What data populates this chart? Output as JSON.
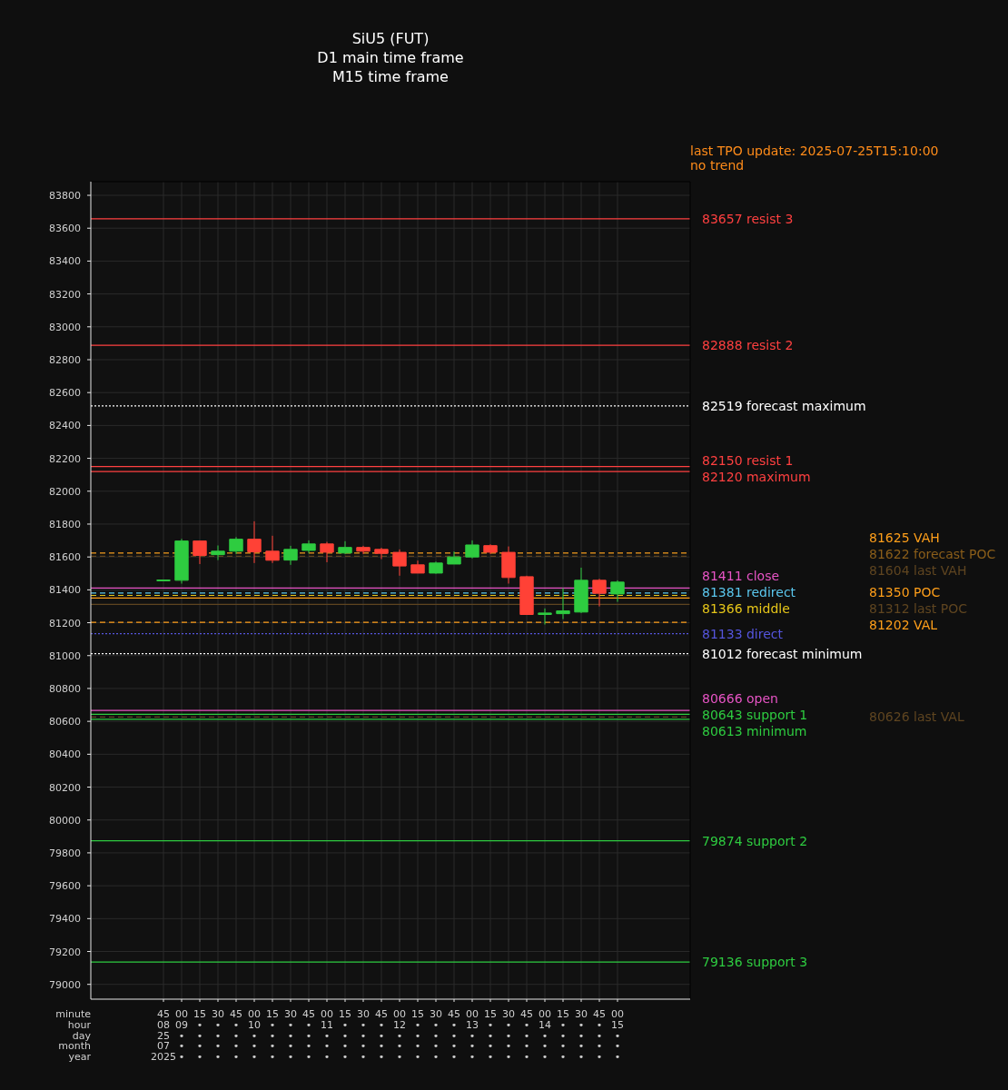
{
  "chart_data": {
    "type": "candlestick",
    "title": "SiU5 (FUT)",
    "subtitle": "D1 main time frame\nM15 time frame",
    "xlabel": "minute\nhour\nday\nmonth\nyear",
    "annotations": [
      "last TPO update: 2025-07-25T15:10:00",
      "no trend"
    ],
    "x": [
      "2025-07-25T08:45",
      "2025-07-25T09:00",
      "2025-07-25T09:15",
      "2025-07-25T09:30",
      "2025-07-25T09:45",
      "2025-07-25T10:00",
      "2025-07-25T10:15",
      "2025-07-25T10:30",
      "2025-07-25T10:45",
      "2025-07-25T11:00",
      "2025-07-25T11:15",
      "2025-07-25T11:30",
      "2025-07-25T11:45",
      "2025-07-25T12:00",
      "2025-07-25T12:15",
      "2025-07-25T12:30",
      "2025-07-25T12:45",
      "2025-07-25T13:00",
      "2025-07-25T13:15",
      "2025-07-25T13:30",
      "2025-07-25T13:45",
      "2025-07-25T14:00",
      "2025-07-25T14:15",
      "2025-07-25T14:30",
      "2025-07-25T14:45",
      "2025-07-25T15:00"
    ],
    "ohlc": [
      [
        81455,
        81460,
        81455,
        81460
      ],
      [
        81458,
        81710,
        81438,
        81697
      ],
      [
        81697,
        81700,
        81557,
        81609
      ],
      [
        81614,
        81670,
        81581,
        81635
      ],
      [
        81635,
        81721,
        81618,
        81708
      ],
      [
        81708,
        81817,
        81563,
        81631
      ],
      [
        81635,
        81729,
        81563,
        81580
      ],
      [
        81581,
        81668,
        81552,
        81646
      ],
      [
        81640,
        81701,
        81622,
        81679
      ],
      [
        81679,
        81692,
        81568,
        81629
      ],
      [
        81624,
        81696,
        81618,
        81658
      ],
      [
        81658,
        81668,
        81618,
        81635
      ],
      [
        81646,
        81656,
        81587,
        81622
      ],
      [
        81628,
        81646,
        81486,
        81545
      ],
      [
        81552,
        81578,
        81502,
        81502
      ],
      [
        81502,
        81572,
        81498,
        81563
      ],
      [
        81557,
        81633,
        81557,
        81600
      ],
      [
        81600,
        81701,
        81591,
        81673
      ],
      [
        81669,
        81677,
        81618,
        81629
      ],
      [
        81628,
        81664,
        81438,
        81475
      ],
      [
        81480,
        81486,
        81250,
        81250
      ],
      [
        81250,
        81287,
        81189,
        81259
      ],
      [
        81255,
        81412,
        81222,
        81272
      ],
      [
        81265,
        81535,
        81259,
        81458
      ],
      [
        81458,
        81467,
        81299,
        81379
      ],
      [
        81375,
        81458,
        81327,
        81447
      ]
    ],
    "colors": [
      "#2ecc40",
      "#2ecc40",
      "#ff4136",
      "#2ecc40",
      "#2ecc40",
      "#ff4136",
      "#ff4136",
      "#2ecc40",
      "#2ecc40",
      "#ff4136",
      "#2ecc40",
      "#ff4136",
      "#ff4136",
      "#ff4136",
      "#ff4136",
      "#2ecc40",
      "#2ecc40",
      "#2ecc40",
      "#ff4136",
      "#ff4136",
      "#ff4136",
      "#2ecc40",
      "#2ecc40",
      "#2ecc40",
      "#ff4136",
      "#2ecc40"
    ],
    "xlim": [
      "2025-07-25T07:45",
      "2025-07-25T16:00"
    ],
    "xticks": [
      {
        "value": "2025-07-25T08:45",
        "label": "45\n08\n25\n07\n2025"
      },
      {
        "value": "2025-07-25T09:00",
        "label": "00\n09\n•\n•\n•"
      },
      {
        "value": "2025-07-25T09:15",
        "label": "15\n•\n•\n•\n•"
      },
      {
        "value": "2025-07-25T09:30",
        "label": "30\n•\n•\n•\n•"
      },
      {
        "value": "2025-07-25T09:45",
        "label": "45\n•\n•\n•\n•"
      },
      {
        "value": "2025-07-25T10:00",
        "label": "00\n10\n•\n•\n•"
      },
      {
        "value": "2025-07-25T10:15",
        "label": "15\n•\n•\n•\n•"
      },
      {
        "value": "2025-07-25T10:30",
        "label": "30\n•\n•\n•\n•"
      },
      {
        "value": "2025-07-25T10:45",
        "label": "45\n•\n•\n•\n•"
      },
      {
        "value": "2025-07-25T11:00",
        "label": "00\n11\n•\n•\n•"
      },
      {
        "value": "2025-07-25T11:15",
        "label": "15\n•\n•\n•\n•"
      },
      {
        "value": "2025-07-25T11:30",
        "label": "30\n•\n•\n•\n•"
      },
      {
        "value": "2025-07-25T11:45",
        "label": "45\n•\n•\n•\n•"
      },
      {
        "value": "2025-07-25T12:00",
        "label": "00\n12\n•\n•\n•"
      },
      {
        "value": "2025-07-25T12:15",
        "label": "15\n•\n•\n•\n•"
      },
      {
        "value": "2025-07-25T12:30",
        "label": "30\n•\n•\n•\n•"
      },
      {
        "value": "2025-07-25T12:45",
        "label": "45\n•\n•\n•\n•"
      },
      {
        "value": "2025-07-25T13:00",
        "label": "00\n13\n•\n•\n•"
      },
      {
        "value": "2025-07-25T13:15",
        "label": "15\n•\n•\n•\n•"
      },
      {
        "value": "2025-07-25T13:30",
        "label": "30\n•\n•\n•\n•"
      },
      {
        "value": "2025-07-25T13:45",
        "label": "45\n•\n•\n•\n•"
      },
      {
        "value": "2025-07-25T14:00",
        "label": "00\n14\n•\n•\n•"
      },
      {
        "value": "2025-07-25T14:15",
        "label": "15\n•\n•\n•\n•"
      },
      {
        "value": "2025-07-25T14:30",
        "label": "30\n•\n•\n•\n•"
      },
      {
        "value": "2025-07-25T14:45",
        "label": "45\n•\n•\n•\n•"
      },
      {
        "value": "2025-07-25T15:00",
        "label": "00\n15\n•\n•\n•"
      }
    ],
    "ylim": [
      78910,
      83883
    ],
    "yticks": [
      79000,
      79200,
      79400,
      79600,
      79800,
      80000,
      80200,
      80400,
      80600,
      80800,
      81000,
      81200,
      81400,
      81600,
      81800,
      82000,
      82200,
      82400,
      82600,
      82800,
      83000,
      83200,
      83400,
      83600,
      83800
    ],
    "grid": true,
    "ref_lines": [
      {
        "axis": "y",
        "value": 83657,
        "label": "83657 resist 3",
        "color": "#ff4040",
        "line_style": "solid"
      },
      {
        "axis": "y",
        "value": 82888,
        "label": "82888 resist 2",
        "color": "#ff4040",
        "line_style": "solid"
      },
      {
        "axis": "y",
        "value": 82519,
        "label": "82519 forecast maximum",
        "color": "#ffffff",
        "line_style": "dotted"
      },
      {
        "axis": "y",
        "value": 82150,
        "label": "82150 resist 1",
        "color": "#ff4040",
        "line_style": "solid"
      },
      {
        "axis": "y",
        "value": 82120,
        "label": "82120 maximum",
        "color": "#ff4040",
        "line_style": "solid"
      },
      {
        "axis": "y",
        "value": 81625,
        "label": "81625 VAH",
        "color": "#ff9f1a",
        "line_style": "dashed"
      },
      {
        "axis": "y",
        "value": 81622,
        "label": "81622 forecast POC",
        "color": "#8b5e1a",
        "line_style": "dashed"
      },
      {
        "axis": "y",
        "value": 81604,
        "label": "81604 last VAH",
        "color": "#5f4520",
        "line_style": "dashed"
      },
      {
        "axis": "y",
        "value": 81411,
        "label": "81411 close",
        "color": "#e754c5",
        "line_style": "solid"
      },
      {
        "axis": "y",
        "value": 81381,
        "label": "81381 redirect",
        "color": "#5bc8ef",
        "line_style": "dashed"
      },
      {
        "axis": "y",
        "value": 81366,
        "label": "81366 middle",
        "color": "#e6c619",
        "line_style": "dashed"
      },
      {
        "axis": "y",
        "value": 81350,
        "label": "81350 POC",
        "color": "#ff9f1a",
        "line_style": "solid"
      },
      {
        "axis": "y",
        "value": 81312,
        "label": "81312 last POC",
        "color": "#5f4520",
        "line_style": "solid"
      },
      {
        "axis": "y",
        "value": 81202,
        "label": "81202 VAL",
        "color": "#ff9f1a",
        "line_style": "dashed"
      },
      {
        "axis": "y",
        "value": 81133,
        "label": "81133 direct",
        "color": "#5555dd",
        "line_style": "dotted"
      },
      {
        "axis": "y",
        "value": 81012,
        "label": "81012 forecast minimum",
        "color": "#ffffff",
        "line_style": "dotted"
      },
      {
        "axis": "y",
        "value": 80666,
        "label": "80666 open",
        "color": "#e754c5",
        "line_style": "solid"
      },
      {
        "axis": "y",
        "value": 80643,
        "label": "80643 support 1",
        "color": "#2ecc40",
        "line_style": "solid"
      },
      {
        "axis": "y",
        "value": 80626,
        "label": "80626 last VAL",
        "color": "#5f4520",
        "line_style": "dashed"
      },
      {
        "axis": "y",
        "value": 80613,
        "label": "80613 minimum",
        "color": "#2ecc40",
        "line_style": "solid"
      },
      {
        "axis": "y",
        "value": 79874,
        "label": "79874 support 2",
        "color": "#2ecc40",
        "line_style": "solid"
      },
      {
        "axis": "y",
        "value": 79136,
        "label": "79136 support 3",
        "color": "#2ecc40",
        "line_style": "solid"
      }
    ]
  }
}
